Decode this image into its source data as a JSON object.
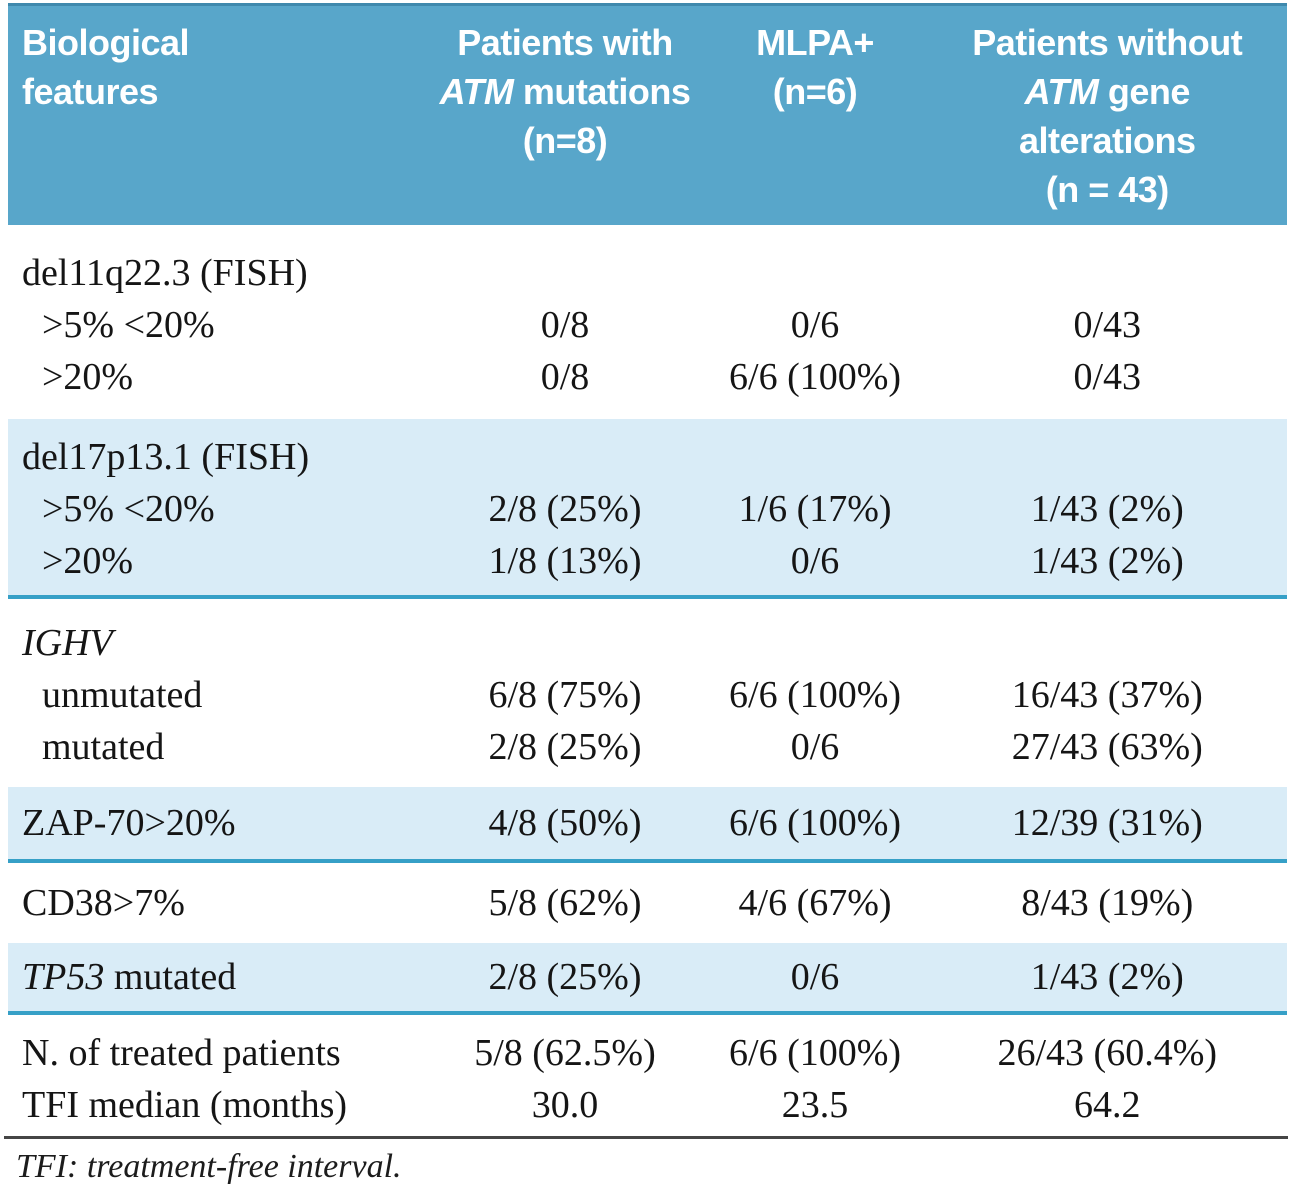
{
  "table": {
    "columns": [
      {
        "id": "biological-features",
        "align": "left",
        "lines": [
          [
            {
              "t": "Biological"
            }
          ],
          [
            {
              "t": "features"
            }
          ]
        ]
      },
      {
        "id": "patients-with-atm-mutations",
        "align": "center",
        "lines": [
          [
            {
              "t": "Patients with"
            }
          ],
          [
            {
              "t": "ATM",
              "i": true
            },
            {
              "t": " mutations"
            }
          ],
          [
            {
              "t": "(n=8)"
            }
          ]
        ]
      },
      {
        "id": "mlpa-positive",
        "align": "center",
        "lines": [
          [
            {
              "t": "MLPA+"
            }
          ],
          [
            {
              "t": "(n=6)"
            }
          ]
        ]
      },
      {
        "id": "patients-without-atm-alterations",
        "align": "center",
        "lines": [
          [
            {
              "t": "Patients without"
            }
          ],
          [
            {
              "t": "ATM",
              "i": true
            },
            {
              "t": " gene"
            }
          ],
          [
            {
              "t": "alterations"
            }
          ],
          [
            {
              "t": "(n = 43)"
            }
          ]
        ]
      }
    ],
    "sections": [
      {
        "shade": "white",
        "rows": [
          {
            "type": "group",
            "label": [
              {
                "t": "del11q22.3 (FISH)"
              }
            ],
            "values": [
              "",
              "",
              ""
            ]
          },
          {
            "type": "sub",
            "label": [
              {
                "t": ">5% <20%"
              }
            ],
            "values": [
              "0/8",
              "0/6",
              "0/43"
            ]
          },
          {
            "type": "sub",
            "label": [
              {
                "t": ">20%"
              }
            ],
            "values": [
              "0/8",
              "6/6 (100%)",
              "0/43"
            ]
          }
        ]
      },
      {
        "shade": "blue",
        "rows": [
          {
            "type": "group",
            "label": [
              {
                "t": "del17p13.1 (FISH)"
              }
            ],
            "values": [
              "",
              "",
              ""
            ]
          },
          {
            "type": "sub",
            "label": [
              {
                "t": ">5% <20%"
              }
            ],
            "values": [
              "2/8 (25%)",
              "1/6 (17%)",
              "1/43 (2%)"
            ]
          },
          {
            "type": "sub",
            "label": [
              {
                "t": ">20%"
              }
            ],
            "values": [
              "1/8 (13%)",
              "0/6",
              "1/43 (2%)"
            ]
          }
        ]
      },
      {
        "shade": "white",
        "rows": [
          {
            "type": "group",
            "label": [
              {
                "t": "IGHV",
                "i": true
              }
            ],
            "values": [
              "",
              "",
              ""
            ]
          },
          {
            "type": "sub",
            "label": [
              {
                "t": "unmutated"
              }
            ],
            "values": [
              "6/8 (75%)",
              "6/6 (100%)",
              "16/43 (37%)"
            ]
          },
          {
            "type": "sub",
            "label": [
              {
                "t": "mutated"
              }
            ],
            "values": [
              "2/8 (25%)",
              "0/6",
              "27/43 (63%)"
            ]
          }
        ]
      },
      {
        "shade": "blue",
        "rows": [
          {
            "type": "data",
            "label": [
              {
                "t": "ZAP-70>20%"
              }
            ],
            "values": [
              "4/8 (50%)",
              "6/6 (100%)",
              "12/39 (31%)"
            ]
          }
        ]
      },
      {
        "shade": "white",
        "rows": [
          {
            "type": "data",
            "label": [
              {
                "t": "CD38>7%"
              }
            ],
            "values": [
              "5/8 (62%)",
              "4/6 (67%)",
              "8/43 (19%)"
            ]
          }
        ]
      },
      {
        "shade": "blue",
        "rows": [
          {
            "type": "data",
            "label": [
              {
                "t": "TP53",
                "i": true
              },
              {
                "t": " mutated"
              }
            ],
            "values": [
              "2/8 (25%)",
              "0/6",
              "1/43 (2%)"
            ]
          }
        ]
      },
      {
        "shade": "white",
        "rows": [
          {
            "type": "data",
            "label": [
              {
                "t": "N. of treated patients"
              }
            ],
            "values": [
              "5/8 (62.5%)",
              "6/6 (100%)",
              "26/43 (60.4%)"
            ]
          },
          {
            "type": "data",
            "label": [
              {
                "t": "TFI median (months)"
              }
            ],
            "values": [
              "30.0",
              "23.5",
              "64.2"
            ]
          }
        ]
      }
    ],
    "colors": {
      "header_bg": "#58a6ca",
      "header_topline": "#3f89ad",
      "band_bg": "#d9ecf7",
      "band_border": "#36a0c7",
      "footer_rule": "#454545"
    }
  },
  "footnote": "TFI: treatment-free interval."
}
